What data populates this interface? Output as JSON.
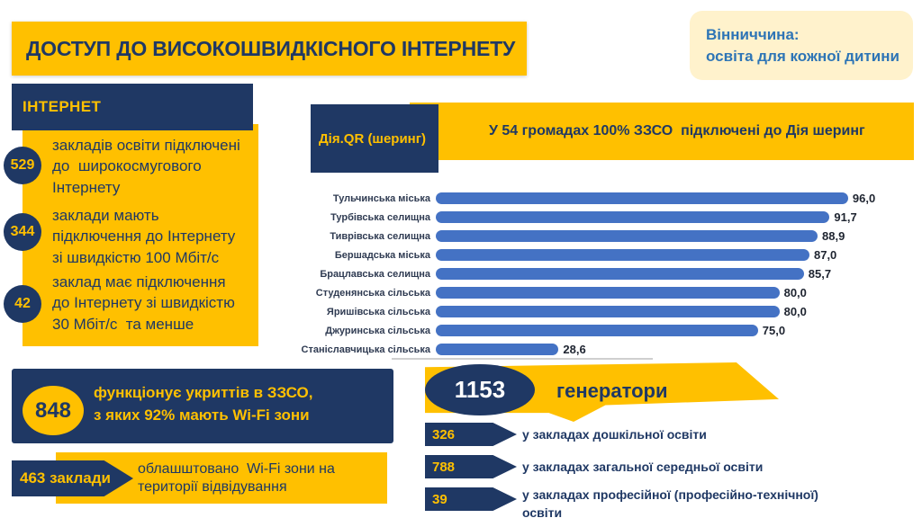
{
  "header": {
    "title": "ДОСТУП ДО ВИСОКОШВИДКІСНОГО ІНТЕРНЕТУ",
    "brand": "Вінниччина:\nосвіта для кожної дитини"
  },
  "internet": {
    "header": "ІНТЕРНЕТ",
    "stats": [
      {
        "value": "529",
        "text": "закладів освіти підключені\nдо  широкосмугового\nІнтернету"
      },
      {
        "value": "344",
        "text": "заклади мають\nпідключення до Інтернету\nзі швидкістю 100 Мбіт/с"
      },
      {
        "value": "42",
        "text": "заклад має підключення\nдо Інтернету зі швидкістю\n30 Мбіт/с  та менше"
      }
    ]
  },
  "diia": {
    "label": "Дія.QR (шеринг)",
    "banner": "У 54 громадах 100% ЗЗСО  підключені до Дія шеринг"
  },
  "chart_data": {
    "type": "bar",
    "orientation": "horizontal",
    "title": "",
    "xlabel": "",
    "ylabel": "",
    "xlim": [
      0,
      100
    ],
    "grid": false,
    "bar_color": "#4472C4",
    "categories": [
      "Тульчинська міська",
      "Турбівська селищна",
      "Тиврівська селищна",
      "Бершадська міська",
      "Брацлавська селищна",
      "Студенянська сільська",
      "Яришівська сільська",
      "Джуринська сільська",
      "Станіславчицька сільська"
    ],
    "values": [
      96.0,
      91.7,
      88.9,
      87.0,
      85.7,
      80.0,
      80.0,
      75.0,
      28.6
    ],
    "value_labels": [
      "96,0",
      "91,7",
      "88,9",
      "87,0",
      "85,7",
      "80,0",
      "80,0",
      "75,0",
      "28,6"
    ]
  },
  "shelters": {
    "value": "848",
    "text": "функціонує укриттів в ЗЗСО,\nз яких 92% мають Wi-Fi зони"
  },
  "wifi": {
    "badge": "463 заклади",
    "text": "облашштовано  Wi-Fi зони на\nтериторії відвідування"
  },
  "generators": {
    "value": "1153",
    "label": "генератори",
    "items": [
      {
        "value": "326",
        "text": "у закладах дошкільної освіти"
      },
      {
        "value": "788",
        "text": "у закладах загальної середньої освіти"
      },
      {
        "value": "39",
        "text": "у закладах професійної (професійно-технічної) освіти"
      }
    ]
  },
  "colors": {
    "gold": "#FFC000",
    "navy": "#1F3864",
    "cream": "#FFF2CC",
    "brand_blue": "#2E75B6",
    "bar_blue": "#4472C4"
  }
}
